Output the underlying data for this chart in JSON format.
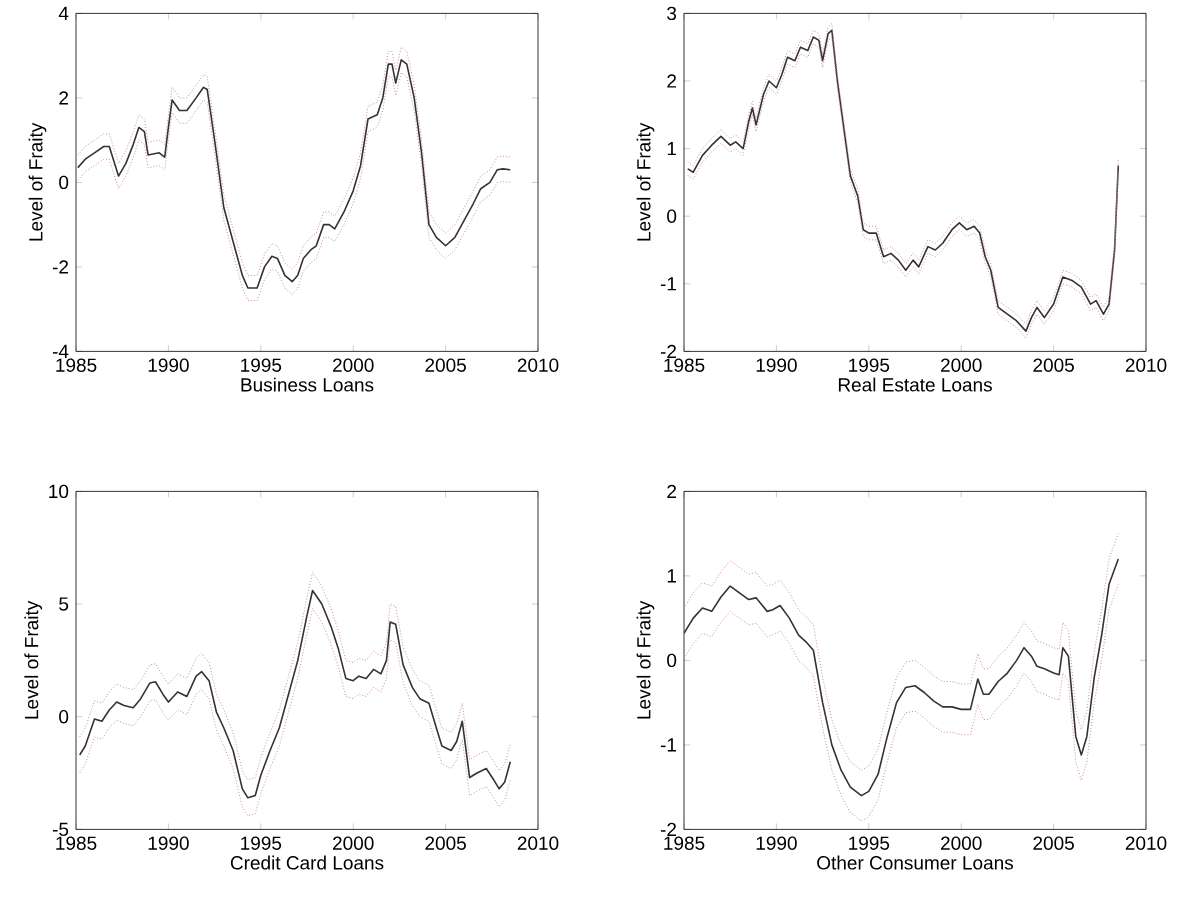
{
  "chart_data": [
    {
      "type": "line",
      "xlabel": "Business Loans",
      "ylabel": "Level of Fraity",
      "xlim": [
        1985,
        2010
      ],
      "ylim": [
        -4,
        4
      ],
      "xticks": [
        1985,
        1990,
        1995,
        2000,
        2005,
        2010
      ],
      "yticks": [
        -4,
        -2,
        0,
        2,
        4
      ],
      "grid": false,
      "x": [
        1985.1,
        1985.5,
        1986,
        1986.5,
        1986.8,
        1987.3,
        1987.7,
        1988.1,
        1988.4,
        1988.7,
        1988.9,
        1989.5,
        1989.8,
        1990,
        1990.2,
        1990.6,
        1991,
        1991.5,
        1991.9,
        1992.1,
        1992.5,
        1993,
        1993.5,
        1994,
        1994.3,
        1994.8,
        1995.2,
        1995.6,
        1995.9,
        1996.3,
        1996.7,
        1997,
        1997.3,
        1997.7,
        1998,
        1998.4,
        1998.7,
        1999,
        1999.5,
        2000,
        2000.4,
        2000.8,
        2001.3,
        2001.6,
        2001.9,
        2002.1,
        2002.3,
        2002.6,
        2002.9,
        2003.3,
        2003.7,
        2004.1,
        2004.5,
        2005,
        2005.5,
        2006,
        2006.5,
        2006.9,
        2007.4,
        2007.8,
        2008.1,
        2008.5
      ],
      "series": [
        {
          "color": "#333333",
          "values": [
            0.35,
            0.55,
            0.7,
            0.85,
            0.85,
            0.15,
            0.45,
            0.9,
            1.3,
            1.2,
            0.65,
            0.7,
            0.6,
            1.3,
            1.95,
            1.7,
            1.7,
            2.0,
            2.25,
            2.2,
            1.0,
            -0.6,
            -1.4,
            -2.2,
            -2.5,
            -2.5,
            -2.0,
            -1.75,
            -1.8,
            -2.2,
            -2.35,
            -2.2,
            -1.8,
            -1.6,
            -1.5,
            -1.0,
            -1.0,
            -1.1,
            -0.7,
            -0.2,
            0.4,
            1.5,
            1.6,
            2.0,
            2.8,
            2.8,
            2.35,
            2.9,
            2.8,
            2.0,
            0.7,
            -1.0,
            -1.3,
            -1.5,
            -1.3,
            -0.9,
            -0.5,
            -0.15,
            0.0,
            0.3,
            0.32,
            0.3
          ],
          "line_style": "solid"
        },
        {
          "color": "#c88c8c",
          "values": [
            0.05,
            0.25,
            0.4,
            0.55,
            0.55,
            -0.15,
            0.15,
            0.6,
            1.0,
            0.9,
            0.35,
            0.4,
            0.3,
            1.0,
            1.65,
            1.4,
            1.4,
            1.7,
            1.95,
            1.9,
            0.7,
            -0.9,
            -1.7,
            -2.5,
            -2.8,
            -2.8,
            -2.3,
            -2.05,
            -2.1,
            -2.5,
            -2.65,
            -2.5,
            -2.1,
            -1.9,
            -1.8,
            -1.3,
            -1.3,
            -1.4,
            -1.0,
            -0.5,
            0.1,
            1.2,
            1.3,
            1.7,
            2.5,
            2.5,
            2.05,
            2.6,
            2.5,
            1.7,
            0.4,
            -1.3,
            -1.6,
            -1.8,
            -1.6,
            -1.2,
            -0.8,
            -0.45,
            -0.3,
            0.0,
            0.02,
            0.0
          ],
          "line_style": "dotted"
        },
        {
          "color": "#c88c8c",
          "line_style": "dotted",
          "values": [
            0.65,
            0.85,
            1.0,
            1.15,
            1.15,
            0.45,
            0.75,
            1.2,
            1.6,
            1.5,
            0.95,
            1.0,
            0.9,
            1.6,
            2.25,
            2.0,
            2.0,
            2.3,
            2.55,
            2.5,
            1.3,
            -0.3,
            -1.1,
            -1.9,
            -2.2,
            -2.2,
            -1.7,
            -1.45,
            -1.5,
            -1.9,
            -2.05,
            -1.9,
            -1.5,
            -1.3,
            -1.2,
            -0.7,
            -0.7,
            -0.8,
            -0.4,
            0.1,
            0.7,
            1.8,
            1.9,
            2.3,
            3.1,
            3.1,
            2.65,
            3.2,
            3.1,
            2.3,
            1.0,
            -0.7,
            -1.0,
            -1.2,
            -1.0,
            -0.6,
            -0.2,
            0.15,
            0.3,
            0.6,
            0.62,
            0.6
          ]
        }
      ]
    },
    {
      "type": "line",
      "xlabel": "Real Estate Loans",
      "ylabel": "Level of Fraity",
      "xlim": [
        1985,
        2010
      ],
      "ylim": [
        -2,
        3
      ],
      "xticks": [
        1985,
        1990,
        1995,
        2000,
        2005,
        2010
      ],
      "yticks": [
        -2,
        -1,
        0,
        1,
        2,
        3
      ],
      "grid": false,
      "x": [
        1985.2,
        1985.5,
        1986,
        1986.5,
        1987,
        1987.5,
        1987.8,
        1988.2,
        1988.5,
        1988.7,
        1988.9,
        1989.3,
        1989.6,
        1990,
        1990.3,
        1990.6,
        1991,
        1991.3,
        1991.7,
        1992,
        1992.3,
        1992.5,
        1992.8,
        1993,
        1993.3,
        1993.7,
        1994,
        1994.4,
        1994.7,
        1995,
        1995.4,
        1995.8,
        1996.2,
        1996.6,
        1997,
        1997.4,
        1997.7,
        1998.2,
        1998.6,
        1999,
        1999.5,
        1999.9,
        2000.3,
        2000.7,
        2001,
        2001.3,
        2001.6,
        2002,
        2002.5,
        2003,
        2003.5,
        2003.8,
        2004.1,
        2004.5,
        2005,
        2005.5,
        2006,
        2006.5,
        2007,
        2007.3,
        2007.7,
        2008,
        2008.3,
        2008.5
      ],
      "series": [
        {
          "color": "#333333",
          "values": [
            0.7,
            0.65,
            0.9,
            1.05,
            1.18,
            1.05,
            1.1,
            1.0,
            1.4,
            1.6,
            1.35,
            1.8,
            2.0,
            1.9,
            2.1,
            2.35,
            2.3,
            2.5,
            2.45,
            2.65,
            2.6,
            2.3,
            2.7,
            2.75,
            2.0,
            1.2,
            0.6,
            0.3,
            -0.2,
            -0.25,
            -0.25,
            -0.6,
            -0.55,
            -0.65,
            -0.8,
            -0.65,
            -0.75,
            -0.45,
            -0.5,
            -0.4,
            -0.2,
            -0.1,
            -0.2,
            -0.15,
            -0.25,
            -0.6,
            -0.8,
            -1.35,
            -1.45,
            -1.55,
            -1.7,
            -1.5,
            -1.35,
            -1.5,
            -1.3,
            -0.9,
            -0.95,
            -1.05,
            -1.3,
            -1.25,
            -1.45,
            -1.3,
            -0.5,
            0.75
          ],
          "line_style": "solid"
        },
        {
          "color": "#c88c8c",
          "values": [
            0.6,
            0.55,
            0.8,
            0.95,
            1.08,
            0.95,
            1.0,
            0.9,
            1.3,
            1.5,
            1.25,
            1.7,
            1.9,
            1.8,
            2.0,
            2.25,
            2.2,
            2.4,
            2.35,
            2.55,
            2.5,
            2.2,
            2.6,
            2.65,
            1.9,
            1.1,
            0.5,
            0.2,
            -0.3,
            -0.35,
            -0.35,
            -0.7,
            -0.65,
            -0.75,
            -0.9,
            -0.75,
            -0.85,
            -0.55,
            -0.6,
            -0.5,
            -0.3,
            -0.2,
            -0.3,
            -0.25,
            -0.35,
            -0.7,
            -0.9,
            -1.45,
            -1.55,
            -1.65,
            -1.8,
            -1.6,
            -1.45,
            -1.6,
            -1.4,
            -1.0,
            -1.05,
            -1.15,
            -1.4,
            -1.35,
            -1.55,
            -1.4,
            -0.6,
            0.65
          ],
          "line_style": "dotted"
        },
        {
          "color": "#c88c8c",
          "line_style": "dotted",
          "values": [
            0.8,
            0.75,
            1.0,
            1.15,
            1.28,
            1.15,
            1.2,
            1.1,
            1.5,
            1.7,
            1.45,
            1.9,
            2.1,
            2.0,
            2.2,
            2.45,
            2.4,
            2.6,
            2.55,
            2.75,
            2.7,
            2.4,
            2.8,
            2.85,
            2.1,
            1.3,
            0.7,
            0.4,
            -0.1,
            -0.15,
            -0.15,
            -0.5,
            -0.45,
            -0.55,
            -0.7,
            -0.55,
            -0.65,
            -0.35,
            -0.4,
            -0.3,
            -0.1,
            0.0,
            -0.1,
            -0.05,
            -0.15,
            -0.5,
            -0.7,
            -1.25,
            -1.35,
            -1.45,
            -1.6,
            -1.4,
            -1.25,
            -1.4,
            -1.2,
            -0.8,
            -0.85,
            -0.95,
            -1.2,
            -1.15,
            -1.35,
            -1.2,
            -0.4,
            0.85
          ]
        }
      ]
    },
    {
      "type": "line",
      "xlabel": "Credit Card Loans",
      "ylabel": "Level of Fraity",
      "xlim": [
        1985,
        2010
      ],
      "ylim": [
        -5,
        10
      ],
      "xticks": [
        1985,
        1990,
        1995,
        2000,
        2005,
        2010
      ],
      "yticks": [
        -5,
        0,
        5,
        10
      ],
      "grid": false,
      "x": [
        1985.2,
        1985.5,
        1986,
        1986.4,
        1986.8,
        1987.2,
        1987.6,
        1988.1,
        1988.5,
        1989,
        1989.3,
        1989.7,
        1990,
        1990.5,
        1991,
        1991.5,
        1991.8,
        1992.2,
        1992.6,
        1993,
        1993.5,
        1994,
        1994.3,
        1994.7,
        1995,
        1995.5,
        1996,
        1996.5,
        1997,
        1997.5,
        1997.8,
        1998.3,
        1998.8,
        1999.2,
        1999.6,
        2000,
        2000.3,
        2000.7,
        2001.1,
        2001.5,
        2001.8,
        2002,
        2002.3,
        2002.7,
        2003.2,
        2003.6,
        2004.1,
        2004.5,
        2004.8,
        2005.3,
        2005.6,
        2005.9,
        2006.3,
        2006.7,
        2007.2,
        2007.6,
        2007.9,
        2008.2,
        2008.5
      ],
      "series": [
        {
          "color": "#333333",
          "values": [
            -1.7,
            -1.3,
            -0.1,
            -0.2,
            0.3,
            0.65,
            0.5,
            0.4,
            0.8,
            1.5,
            1.55,
            1.0,
            0.65,
            1.1,
            0.9,
            1.8,
            2.0,
            1.6,
            0.2,
            -0.5,
            -1.5,
            -3.2,
            -3.6,
            -3.5,
            -2.6,
            -1.5,
            -0.5,
            1.0,
            2.5,
            4.5,
            5.6,
            5.0,
            4.0,
            3.0,
            1.7,
            1.6,
            1.8,
            1.7,
            2.1,
            1.9,
            2.5,
            4.2,
            4.1,
            2.3,
            1.3,
            0.8,
            0.6,
            -0.5,
            -1.3,
            -1.5,
            -1.1,
            -0.2,
            -2.7,
            -2.5,
            -2.3,
            -2.8,
            -3.2,
            -2.9,
            -2.0
          ],
          "line_style": "solid"
        },
        {
          "color": "#c88c8c",
          "values": [
            -2.5,
            -2.1,
            -0.9,
            -1.0,
            -0.5,
            -0.15,
            -0.3,
            -0.4,
            0.0,
            0.7,
            0.75,
            0.2,
            -0.15,
            0.3,
            0.1,
            1.0,
            1.2,
            0.8,
            -0.6,
            -1.3,
            -2.3,
            -4.0,
            -4.4,
            -4.3,
            -3.4,
            -2.3,
            -1.3,
            0.2,
            1.7,
            3.7,
            4.8,
            4.2,
            3.2,
            2.2,
            0.9,
            0.8,
            1.0,
            0.9,
            1.3,
            1.1,
            1.7,
            3.4,
            3.3,
            1.5,
            0.5,
            0.0,
            -0.2,
            -1.3,
            -2.1,
            -2.3,
            -1.9,
            -1.0,
            -3.5,
            -3.3,
            -3.1,
            -3.6,
            -4.0,
            -3.7,
            -2.8
          ],
          "line_style": "dotted"
        },
        {
          "color": "#c88c8c",
          "line_style": "dotted",
          "values": [
            -0.9,
            -0.5,
            0.7,
            0.6,
            1.1,
            1.45,
            1.3,
            1.2,
            1.6,
            2.3,
            2.35,
            1.8,
            1.45,
            1.9,
            1.7,
            2.6,
            2.8,
            2.4,
            1.0,
            0.3,
            -0.7,
            -2.4,
            -2.8,
            -2.7,
            -1.8,
            -0.7,
            0.3,
            1.8,
            3.3,
            5.3,
            6.4,
            5.8,
            4.8,
            3.8,
            2.5,
            2.4,
            2.6,
            2.5,
            2.9,
            2.7,
            3.3,
            5.0,
            4.9,
            3.1,
            2.1,
            1.6,
            1.4,
            0.3,
            -0.5,
            -0.7,
            -0.3,
            0.6,
            -1.9,
            -1.7,
            -1.5,
            -2.0,
            -2.4,
            -2.1,
            -1.2
          ]
        }
      ]
    },
    {
      "type": "line",
      "xlabel": "Other Consumer Loans",
      "ylabel": "Level of Fraity",
      "xlim": [
        1985,
        2010
      ],
      "ylim": [
        -2,
        2
      ],
      "xticks": [
        1985,
        1990,
        1995,
        2000,
        2005,
        2010
      ],
      "yticks": [
        -2,
        -1,
        0,
        1,
        2
      ],
      "grid": false,
      "x": [
        1985,
        1985.5,
        1986,
        1986.5,
        1987,
        1987.5,
        1988,
        1988.5,
        1988.9,
        1989.5,
        1989.8,
        1990.2,
        1990.7,
        1991.2,
        1991.6,
        1992,
        1992.5,
        1993,
        1993.5,
        1994,
        1994.6,
        1995,
        1995.5,
        1996,
        1996.5,
        1997,
        1997.5,
        1998,
        1998.5,
        1999,
        1999.5,
        2000,
        2000.5,
        2000.9,
        2001.2,
        2001.5,
        2002,
        2002.5,
        2003,
        2003.4,
        2003.8,
        2004.1,
        2004.5,
        2005,
        2005.3,
        2005.5,
        2005.8,
        2006.2,
        2006.5,
        2006.8,
        2007.2,
        2007.6,
        2008,
        2008.5
      ],
      "series": [
        {
          "color": "#333333",
          "values": [
            0.32,
            0.5,
            0.62,
            0.58,
            0.75,
            0.88,
            0.8,
            0.72,
            0.74,
            0.58,
            0.6,
            0.65,
            0.5,
            0.3,
            0.22,
            0.12,
            -0.5,
            -1.0,
            -1.3,
            -1.5,
            -1.6,
            -1.55,
            -1.35,
            -0.9,
            -0.5,
            -0.32,
            -0.3,
            -0.38,
            -0.48,
            -0.55,
            -0.55,
            -0.58,
            -0.58,
            -0.22,
            -0.4,
            -0.4,
            -0.25,
            -0.15,
            0.0,
            0.15,
            0.05,
            -0.07,
            -0.1,
            -0.15,
            -0.17,
            0.15,
            0.05,
            -0.9,
            -1.12,
            -0.9,
            -0.2,
            0.3,
            0.9,
            1.2
          ],
          "line_style": "solid"
        },
        {
          "color": "#c88c8c",
          "values": [
            0.02,
            0.2,
            0.32,
            0.28,
            0.45,
            0.58,
            0.5,
            0.42,
            0.44,
            0.28,
            0.3,
            0.35,
            0.2,
            0.0,
            -0.08,
            -0.18,
            -0.8,
            -1.3,
            -1.6,
            -1.8,
            -1.9,
            -1.85,
            -1.65,
            -1.2,
            -0.8,
            -0.62,
            -0.6,
            -0.68,
            -0.78,
            -0.85,
            -0.85,
            -0.88,
            -0.88,
            -0.52,
            -0.7,
            -0.7,
            -0.55,
            -0.45,
            -0.3,
            -0.15,
            -0.25,
            -0.37,
            -0.4,
            -0.45,
            -0.47,
            -0.15,
            -0.25,
            -1.2,
            -1.42,
            -1.2,
            -0.5,
            0.0,
            0.6,
            0.9
          ],
          "line_style": "dotted"
        },
        {
          "color": "#c88c8c",
          "line_style": "dotted",
          "values": [
            0.62,
            0.8,
            0.92,
            0.88,
            1.05,
            1.18,
            1.1,
            1.02,
            1.04,
            0.88,
            0.9,
            0.95,
            0.8,
            0.6,
            0.52,
            0.42,
            -0.2,
            -0.7,
            -1.0,
            -1.2,
            -1.3,
            -1.25,
            -1.05,
            -0.6,
            -0.2,
            -0.02,
            0.0,
            -0.08,
            -0.18,
            -0.25,
            -0.25,
            -0.28,
            -0.28,
            0.08,
            -0.1,
            -0.1,
            0.05,
            0.15,
            0.3,
            0.45,
            0.35,
            0.23,
            0.2,
            0.15,
            0.13,
            0.45,
            0.35,
            -0.6,
            -0.82,
            -0.6,
            0.1,
            0.6,
            1.2,
            1.5
          ]
        }
      ]
    }
  ]
}
